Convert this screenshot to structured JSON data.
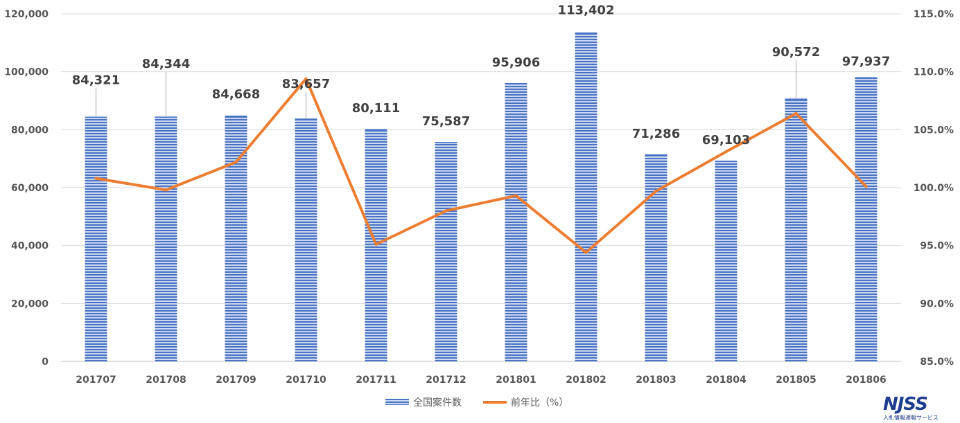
{
  "chart_data": {
    "type": "bar",
    "categories": [
      "201707",
      "201708",
      "201709",
      "201710",
      "201711",
      "201712",
      "201801",
      "201802",
      "201803",
      "201804",
      "201805",
      "201806"
    ],
    "series": [
      {
        "name": "全国案件数",
        "type": "bar",
        "axis": "left",
        "color": "#4472c4",
        "values": [
          84321,
          84344,
          84668,
          83657,
          80111,
          75587,
          95906,
          113402,
          71286,
          69103,
          90572,
          97937
        ],
        "labels": [
          "84,321",
          "84,344",
          "84,668",
          "83,657",
          "80,111",
          "75,587",
          "95,906",
          "113,402",
          "71,286",
          "69,103",
          "90,572",
          "97,937"
        ]
      },
      {
        "name": "前年比（%）",
        "type": "line",
        "axis": "right",
        "color": "#ed7d31",
        "values": [
          100.8,
          99.8,
          102.2,
          109.4,
          95.1,
          98.0,
          99.3,
          94.4,
          99.7,
          103.1,
          106.4,
          100.1
        ]
      }
    ],
    "y_left": {
      "min": 0,
      "max": 120000,
      "ticks": [
        0,
        20000,
        40000,
        60000,
        80000,
        100000,
        120000
      ],
      "tick_labels": [
        "0",
        "20,000",
        "40,000",
        "60,000",
        "80,000",
        "100,000",
        "120,000"
      ]
    },
    "y_right": {
      "min": 85,
      "max": 115,
      "ticks": [
        85,
        90,
        95,
        100,
        105,
        110,
        115
      ],
      "tick_labels": [
        "85.0%",
        "90.0%",
        "95.0%",
        "100.0%",
        "105.0%",
        "110.0%",
        "115.0%"
      ]
    },
    "grid": true,
    "legend_position": "bottom"
  },
  "logo": {
    "text": "NJSS",
    "subtext": "入札情報速報サービス"
  },
  "colors": {
    "bar": "#4472c4",
    "line": "#ed7d31",
    "grid": "#d9d9d9",
    "axis_text": "#555555",
    "label_text": "#404040"
  }
}
